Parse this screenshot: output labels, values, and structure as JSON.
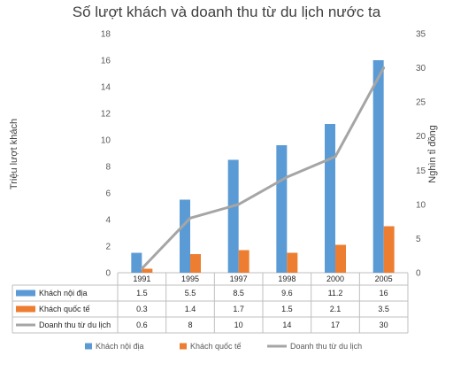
{
  "chart_data": {
    "type": "bar",
    "title": "Số lượt khách và doanh thu từ du lịch nước ta",
    "ylabel": "Triệu lượt khách",
    "y2label": "Nghìn tỉ đồng",
    "categories": [
      "1991",
      "1995",
      "1997",
      "1998",
      "2000",
      "2005"
    ],
    "ylim": [
      0,
      18
    ],
    "y2lim": [
      0,
      35
    ],
    "yticks": [
      "0",
      "2",
      "4",
      "6",
      "8",
      "10",
      "12",
      "14",
      "16",
      "18"
    ],
    "y2ticks": [
      "0",
      "5",
      "10",
      "15",
      "20",
      "25",
      "30",
      "35"
    ],
    "series": [
      {
        "name": "Khách nội địa",
        "type": "bar",
        "axis": "left",
        "color": "#5b9bd5",
        "values": [
          1.5,
          5.5,
          8.5,
          9.6,
          11.2,
          16
        ],
        "labels": [
          "1.5",
          "5.5",
          "8.5",
          "9.6",
          "11.2",
          "16"
        ]
      },
      {
        "name": "Khách quốc tế",
        "type": "bar",
        "axis": "left",
        "color": "#ed7d31",
        "values": [
          0.3,
          1.4,
          1.7,
          1.5,
          2.1,
          3.5
        ],
        "labels": [
          "0.3",
          "1.4",
          "1.7",
          "1.5",
          "2.1",
          "3.5"
        ]
      },
      {
        "name": "Doanh thu từ du lịch",
        "type": "line",
        "axis": "right",
        "color": "#a5a5a5",
        "values": [
          0.6,
          8,
          10,
          14,
          17,
          30
        ],
        "labels": [
          "0.6",
          "8",
          "10",
          "14",
          "17",
          "30"
        ]
      }
    ],
    "grid": false,
    "data_table": true,
    "legend_position": "bottom"
  }
}
